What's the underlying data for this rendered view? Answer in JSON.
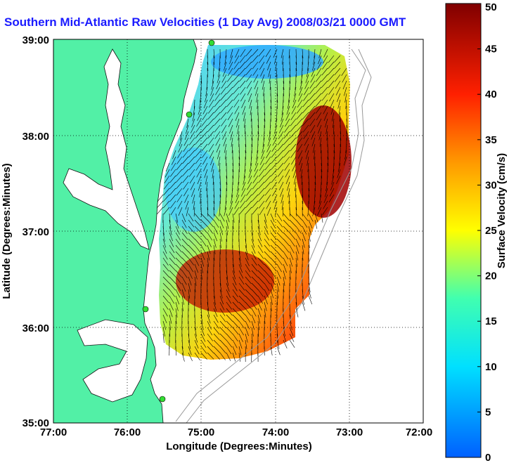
{
  "title": "Southern Mid-Atlantic Raw Velocities (1 Day Avg) 2008/03/21 0000 GMT",
  "x_axis": {
    "label": "Longitude (Degrees:Minutes)",
    "ticks": [
      "77:00",
      "76:00",
      "75:00",
      "74:00",
      "73:00",
      "72:00"
    ]
  },
  "y_axis": {
    "label": "Latitude (Degrees:Minutes)",
    "ticks": [
      "39:00",
      "38:00",
      "37:00",
      "36:00",
      "35:00"
    ]
  },
  "colorbar": {
    "label": "Surface Velocity (cm/s)",
    "ticks": [
      "0",
      "5",
      "10",
      "15",
      "20",
      "25",
      "30",
      "35",
      "40",
      "45",
      "50"
    ],
    "min": 0,
    "max": 50
  },
  "colors": {
    "land": "#52f0a6",
    "water": "#ffffff",
    "title": "#1a1aff",
    "station": "#33dd33"
  },
  "map": {
    "lon_range": [
      -77,
      -72
    ],
    "lat_range": [
      35,
      39
    ],
    "grid": "dotted",
    "radar_stations": 4
  }
}
